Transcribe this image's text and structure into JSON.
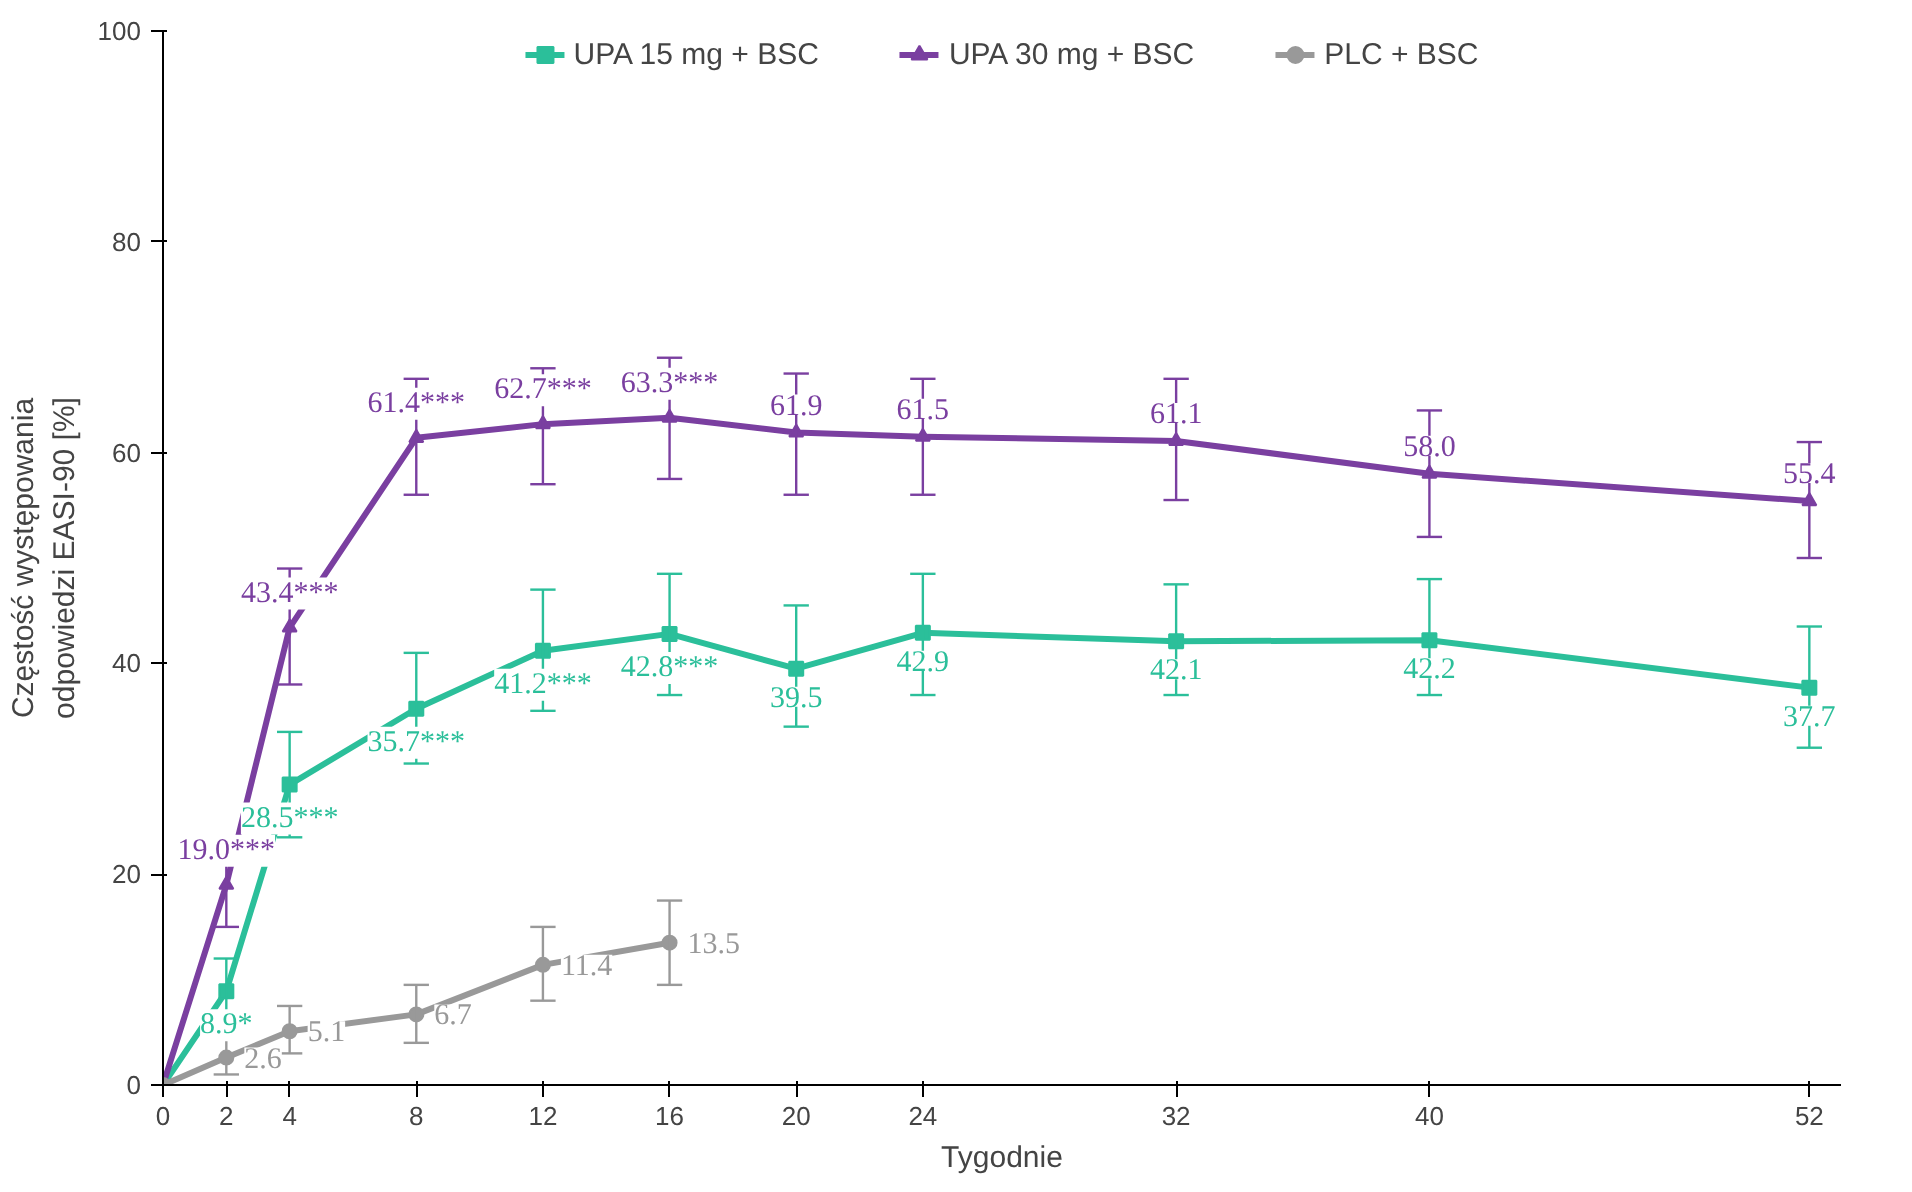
{
  "chart_data": {
    "type": "line",
    "xlabel": "Tygodnie",
    "ylabel": "Częstość występowania odpowiedzi EASI-90 [%]",
    "x": [
      0,
      2,
      4,
      8,
      12,
      16,
      20,
      24,
      32,
      40,
      52
    ],
    "xlim": [
      0,
      53
    ],
    "xticks": [
      0,
      2,
      4,
      8,
      12,
      16,
      20,
      24,
      32,
      40,
      52
    ],
    "ylim": [
      0,
      100
    ],
    "yticks": [
      0,
      20,
      40,
      60,
      80,
      100
    ],
    "grid": false,
    "legend": "top",
    "line_style": "solid",
    "series": [
      {
        "name": "UPA 15 mg + BSC",
        "color": "#2bbf9a",
        "marker": "square",
        "values": [
          0,
          8.9,
          28.5,
          35.7,
          41.2,
          42.8,
          39.5,
          42.9,
          42.1,
          42.2,
          37.7
        ],
        "errors": [
          null,
          [
            6,
            12
          ],
          [
            23.5,
            33.5
          ],
          [
            30.5,
            41
          ],
          [
            35.5,
            47
          ],
          [
            37,
            48.5
          ],
          [
            34,
            45.5
          ],
          [
            37,
            48.5
          ],
          [
            37,
            47.5
          ],
          [
            37,
            48
          ],
          [
            32,
            43.5
          ]
        ],
        "value_labels": [
          null,
          "8.9*",
          "28.5***",
          "35.7***",
          "41.2***",
          "42.8***",
          "39.5",
          "42.9",
          "42.1",
          "42.2",
          "37.7"
        ]
      },
      {
        "name": "UPA 30 mg + BSC",
        "color": "#7a3fa0",
        "marker": "triangle",
        "values": [
          0,
          19.0,
          43.4,
          61.4,
          62.7,
          63.3,
          61.9,
          61.5,
          61.1,
          58.0,
          55.4
        ],
        "errors": [
          null,
          [
            15,
            23
          ],
          [
            38,
            49
          ],
          [
            56,
            67
          ],
          [
            57,
            68
          ],
          [
            57.5,
            69
          ],
          [
            56,
            67.5
          ],
          [
            56,
            67
          ],
          [
            55.5,
            67
          ],
          [
            52,
            64
          ],
          [
            50,
            61
          ]
        ],
        "value_labels": [
          null,
          "19.0***",
          "43.4***",
          "61.4***",
          "62.7***",
          "63.3***",
          "61.9",
          "61.5",
          "61.1",
          "58.0",
          "55.4"
        ]
      },
      {
        "name": "PLC + BSC",
        "color": "#999999",
        "marker": "circle",
        "x": [
          0,
          2,
          4,
          8,
          12,
          16
        ],
        "values": [
          0,
          2.6,
          5.1,
          6.7,
          11.4,
          13.5
        ],
        "errors": [
          null,
          [
            1,
            4.5
          ],
          [
            3,
            7.5
          ],
          [
            4,
            9.5
          ],
          [
            8,
            15
          ],
          [
            9.5,
            17.5
          ]
        ],
        "value_labels": [
          null,
          "2.6",
          "5.1",
          "6.7",
          "11.4",
          "13.5"
        ]
      }
    ]
  }
}
